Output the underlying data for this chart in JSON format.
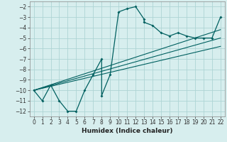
{
  "xlabel": "Humidex (Indice chaleur)",
  "bg_color": "#d7eeee",
  "grid_color": "#aed4d4",
  "line_color": "#006060",
  "xlim": [
    -0.5,
    22.5
  ],
  "ylim": [
    -12.5,
    -1.5
  ],
  "xticks": [
    0,
    1,
    2,
    3,
    4,
    5,
    6,
    7,
    8,
    9,
    10,
    11,
    12,
    13,
    14,
    15,
    16,
    17,
    18,
    19,
    20,
    21,
    22
  ],
  "yticks": [
    -12,
    -11,
    -10,
    -9,
    -8,
    -7,
    -6,
    -5,
    -4,
    -3,
    -2
  ],
  "series": [
    [
      0,
      -10
    ],
    [
      1,
      -11
    ],
    [
      2,
      -9.5
    ],
    [
      3,
      -11
    ],
    [
      4,
      -12
    ],
    [
      5,
      -12
    ],
    [
      6,
      -10
    ],
    [
      7,
      -8.5
    ],
    [
      8,
      -7
    ],
    [
      8,
      -10.5
    ],
    [
      9,
      -8.5
    ],
    [
      10,
      -2.5
    ],
    [
      11,
      -2.2
    ],
    [
      12,
      -2.0
    ],
    [
      13,
      -3.2
    ],
    [
      13,
      -3.5
    ],
    [
      14,
      -3.8
    ],
    [
      15,
      -4.5
    ],
    [
      16,
      -4.8
    ],
    [
      17,
      -4.5
    ],
    [
      18,
      -4.8
    ],
    [
      19,
      -5.0
    ],
    [
      20,
      -5.0
    ],
    [
      21,
      -5.0
    ],
    [
      22,
      -3.0
    ]
  ],
  "trend_lines": [
    [
      [
        0,
        -10
      ],
      [
        22,
        -4.2
      ]
    ],
    [
      [
        0,
        -10
      ],
      [
        22,
        -5.0
      ]
    ],
    [
      [
        0,
        -10
      ],
      [
        22,
        -5.8
      ]
    ]
  ],
  "tick_fontsize": 5.5,
  "xlabel_fontsize": 6.5,
  "spine_color": "#888888"
}
